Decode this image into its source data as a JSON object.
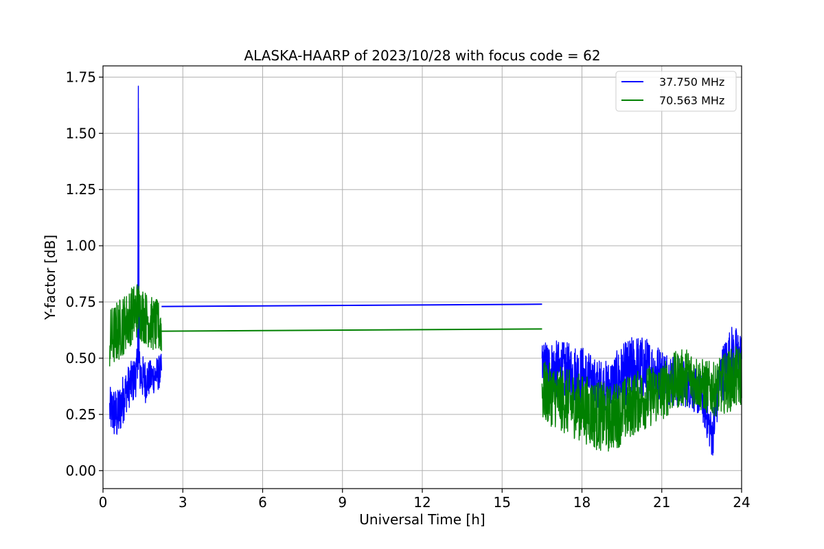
{
  "chart_data": {
    "type": "line",
    "title": "ALASKA-HAARP of 2023/10/28 with focus code = 62",
    "xlabel": "Universal Time [h]",
    "ylabel": "Y-factor [dB]",
    "xlim": [
      0,
      24
    ],
    "ylim": [
      -0.08,
      1.8
    ],
    "xticks": [
      0,
      3,
      6,
      9,
      12,
      15,
      18,
      21,
      24
    ],
    "xtick_labels": [
      "0",
      "3",
      "6",
      "9",
      "12",
      "15",
      "18",
      "21",
      "24"
    ],
    "yticks": [
      0.0,
      0.25,
      0.5,
      0.75,
      1.0,
      1.25,
      1.5,
      1.75
    ],
    "ytick_labels": [
      "0.00",
      "0.25",
      "0.50",
      "0.75",
      "1.00",
      "1.25",
      "1.50",
      "1.75"
    ],
    "grid": true,
    "legend": "top-right",
    "series": [
      {
        "name": "37.750 MHz",
        "color": "#0000ff",
        "segments": [
          {
            "x": [
              0.25,
              0.4,
              0.55,
              0.7,
              0.85,
              1.0,
              1.15,
              1.3,
              1.33,
              1.36,
              1.45,
              1.6,
              1.75,
              1.9,
              2.05,
              2.2
            ],
            "y": [
              0.27,
              0.26,
              0.24,
              0.3,
              0.35,
              0.38,
              0.4,
              0.45,
              1.71,
              0.45,
              0.42,
              0.4,
              0.41,
              0.42,
              0.43,
              0.45
            ],
            "spread": [
              0.1,
              0.12,
              0.12,
              0.12,
              0.1,
              0.1,
              0.1,
              0.1,
              0.0,
              0.1,
              0.1,
              0.1,
              0.08,
              0.08,
              0.08,
              0.07
            ]
          },
          {
            "x": [
              2.2,
              16.5
            ],
            "y": [
              0.73,
              0.74
            ],
            "spread": [
              0,
              0
            ]
          },
          {
            "x": [
              16.5,
              17.0,
              17.5,
              18.0,
              18.5,
              19.0,
              19.5,
              20.0,
              20.5,
              21.0,
              21.5,
              22.0,
              22.5,
              22.9,
              23.2,
              23.6,
              24.0
            ],
            "y": [
              0.46,
              0.45,
              0.43,
              0.42,
              0.38,
              0.37,
              0.42,
              0.46,
              0.45,
              0.43,
              0.4,
              0.38,
              0.33,
              0.15,
              0.42,
              0.5,
              0.48
            ],
            "spread": [
              0.12,
              0.13,
              0.14,
              0.14,
              0.12,
              0.12,
              0.14,
              0.15,
              0.14,
              0.12,
              0.12,
              0.1,
              0.1,
              0.1,
              0.12,
              0.15,
              0.15
            ]
          }
        ]
      },
      {
        "name": "70.563 MHz",
        "color": "#008000",
        "segments": [
          {
            "x": [
              0.25,
              0.4,
              0.55,
              0.7,
              0.85,
              1.0,
              1.15,
              1.3,
              1.45,
              1.6,
              1.75,
              1.9,
              2.05,
              2.2
            ],
            "y": [
              0.58,
              0.6,
              0.62,
              0.64,
              0.66,
              0.68,
              0.7,
              0.72,
              0.7,
              0.68,
              0.66,
              0.65,
              0.64,
              0.63
            ],
            "spread": [
              0.14,
              0.14,
              0.14,
              0.14,
              0.13,
              0.13,
              0.13,
              0.13,
              0.13,
              0.12,
              0.12,
              0.12,
              0.12,
              0.12
            ]
          },
          {
            "x": [
              2.2,
              16.5
            ],
            "y": [
              0.62,
              0.63
            ],
            "spread": [
              0,
              0
            ]
          },
          {
            "x": [
              16.5,
              17.0,
              17.5,
              18.0,
              18.5,
              19.0,
              19.5,
              20.0,
              20.5,
              21.0,
              21.5,
              22.0,
              22.5,
              23.0,
              23.5,
              24.0
            ],
            "y": [
              0.35,
              0.33,
              0.3,
              0.28,
              0.25,
              0.23,
              0.26,
              0.3,
              0.33,
              0.35,
              0.4,
              0.42,
              0.38,
              0.36,
              0.4,
              0.42
            ],
            "spread": [
              0.14,
              0.14,
              0.15,
              0.15,
              0.16,
              0.15,
              0.15,
              0.14,
              0.14,
              0.13,
              0.13,
              0.13,
              0.12,
              0.12,
              0.14,
              0.14
            ]
          }
        ]
      }
    ]
  }
}
